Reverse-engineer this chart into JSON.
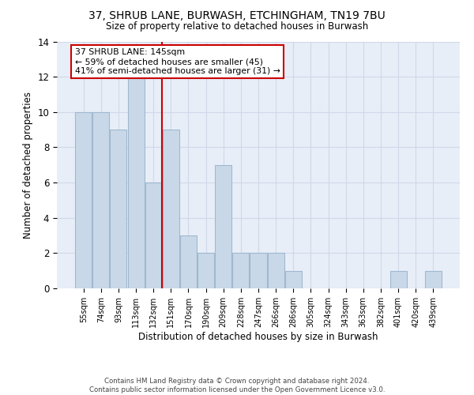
{
  "title1": "37, SHRUB LANE, BURWASH, ETCHINGHAM, TN19 7BU",
  "title2": "Size of property relative to detached houses in Burwash",
  "xlabel": "Distribution of detached houses by size in Burwash",
  "ylabel": "Number of detached properties",
  "bar_labels": [
    "55sqm",
    "74sqm",
    "93sqm",
    "113sqm",
    "132sqm",
    "151sqm",
    "170sqm",
    "190sqm",
    "209sqm",
    "228sqm",
    "247sqm",
    "266sqm",
    "286sqm",
    "305sqm",
    "324sqm",
    "343sqm",
    "363sqm",
    "382sqm",
    "401sqm",
    "420sqm",
    "439sqm"
  ],
  "bar_values": [
    10,
    10,
    9,
    12,
    6,
    9,
    3,
    2,
    7,
    2,
    2,
    2,
    1,
    0,
    0,
    0,
    0,
    0,
    1,
    0,
    1
  ],
  "bar_color": "#c8d8e8",
  "bar_edgecolor": "#a0b8d0",
  "vline_x": 4.5,
  "vline_color": "#cc0000",
  "annotation_title": "37 SHRUB LANE: 145sqm",
  "annotation_line1": "← 59% of detached houses are smaller (45)",
  "annotation_line2": "41% of semi-detached houses are larger (31) →",
  "annotation_box_color": "#cc0000",
  "annotation_bg": "#ffffff",
  "ylim": [
    0,
    14
  ],
  "yticks": [
    0,
    2,
    4,
    6,
    8,
    10,
    12,
    14
  ],
  "grid_color": "#d0d8e8",
  "bg_color": "#e8eef8",
  "footer": "Contains HM Land Registry data © Crown copyright and database right 2024.\nContains public sector information licensed under the Open Government Licence v3.0."
}
